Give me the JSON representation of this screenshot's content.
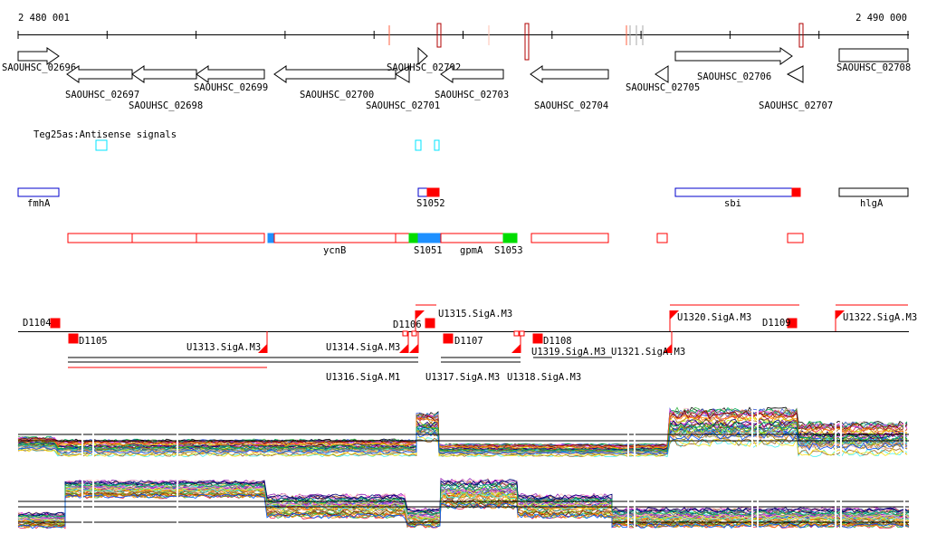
{
  "axis": {
    "start_label": "2 480 001",
    "end_label": "2 490 000"
  },
  "genes": [
    {
      "label": "SAOUHSC_02696",
      "strand": "+"
    },
    {
      "label": "SAOUHSC_02697",
      "strand": "-"
    },
    {
      "label": "SAOUHSC_02698",
      "strand": "-"
    },
    {
      "label": "SAOUHSC_02699",
      "strand": "-"
    },
    {
      "label": "SAOUHSC_02700",
      "strand": "-"
    },
    {
      "label": "SAOUHSC_02701",
      "strand": "-"
    },
    {
      "label": "SAOUHSC_02702",
      "strand": "+"
    },
    {
      "label": "SAOUHSC_02703",
      "strand": "-"
    },
    {
      "label": "SAOUHSC_02704",
      "strand": "-"
    },
    {
      "label": "SAOUHSC_02705",
      "strand": "-"
    },
    {
      "label": "SAOUHSC_02706",
      "strand": "+"
    },
    {
      "label": "SAOUHSC_02707",
      "strand": "-"
    },
    {
      "label": "SAOUHSC_02708",
      "strand": "+"
    }
  ],
  "antisense_track": {
    "title": "Teg25as:Antisense signals"
  },
  "srna_features": [
    "fmhA",
    "S1052",
    "sbi",
    "hlgA"
  ],
  "annotation_labels": [
    "ycnB",
    "S1051",
    "gpmA",
    "S1053"
  ],
  "promoters": [
    "D1104",
    "D1105",
    "U1313.SigA.M3",
    "U1314.SigA.M3",
    "U1316.SigA.M1",
    "D1106",
    "U1315.SigA.M3",
    "D1107",
    "U1317.SigA.M3",
    "U1318.SigA.M3",
    "D1108",
    "U1319.SigA.M3",
    "U1321.SigA.M3",
    "U1320.SigA.M3",
    "D1109",
    "U1322.SigA.M3"
  ],
  "colors": {
    "gene": "#000000",
    "feature": "#ff0000",
    "antisense": "#00e5ff",
    "srna_box": "#0000cc",
    "green": "#00dd00",
    "blue": "#1e90ff"
  }
}
